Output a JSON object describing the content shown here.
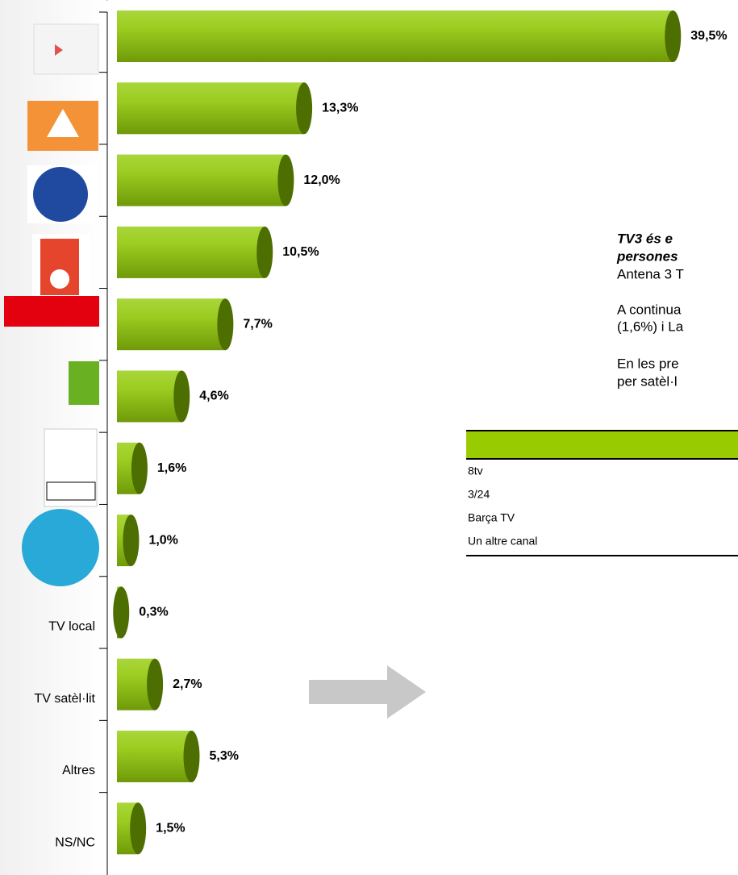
{
  "chart_data": {
    "type": "bar",
    "orientation": "horizontal",
    "categories": [
      null,
      null,
      null,
      null,
      null,
      null,
      null,
      null,
      "TV local",
      "TV satèl·lit",
      "Altres",
      "NS/NC"
    ],
    "values": [
      39.5,
      13.3,
      12.0,
      10.5,
      7.7,
      4.6,
      1.6,
      1.0,
      0.3,
      2.7,
      5.3,
      1.5
    ],
    "value_labels": [
      "39,5%",
      "13,3%",
      "12,0%",
      "10,5%",
      "7,7%",
      "4,6%",
      "1,6%",
      "1,0%",
      "0,3%",
      "2,7%",
      "5,3%",
      "1,5%"
    ],
    "color": "#8cc010",
    "cap_color": "#4d6e00",
    "xlim": [
      0,
      40
    ],
    "annotations": [
      {
        "text": "TV3 és e",
        "style": "bold-italic"
      },
      {
        "text": "persones",
        "style": "bold-italic"
      },
      {
        "text": "Antena 3 T",
        "style": "normal"
      },
      {
        "text": "A continua",
        "style": "normal"
      },
      {
        "text": "(1,6%) i La",
        "style": "normal"
      },
      {
        "text": "En les pre",
        "style": "normal"
      },
      {
        "text": "per satèl·l",
        "style": "normal"
      }
    ],
    "table_rows": [
      "8tv",
      "3/24",
      "Barça TV",
      "Un altre canal"
    ]
  }
}
